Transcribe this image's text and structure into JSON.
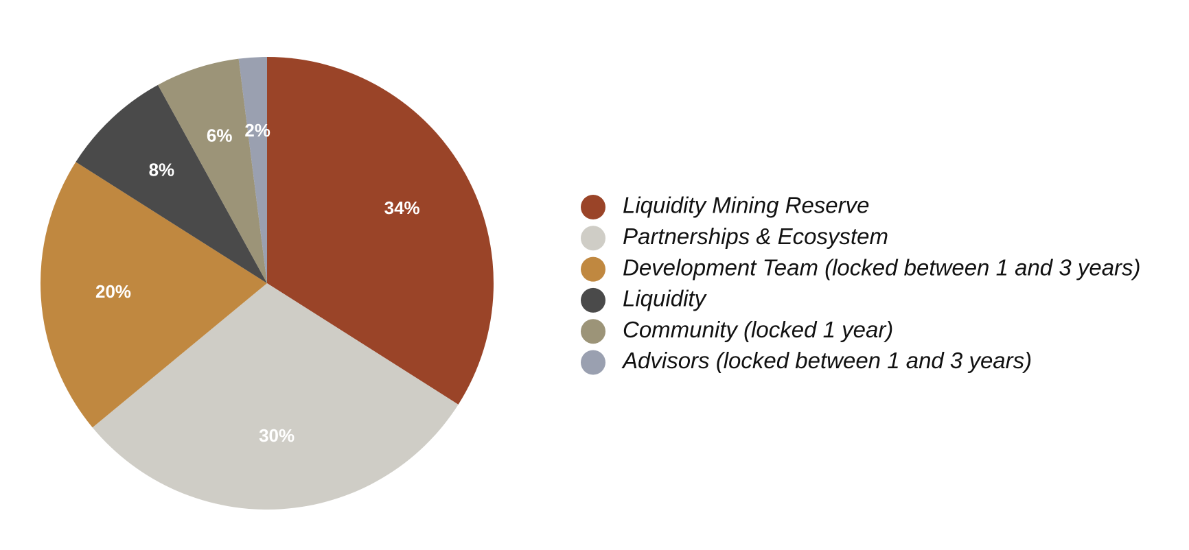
{
  "chart_data": {
    "type": "pie",
    "categories": [
      "Liquidity Mining Reserve",
      "Partnerships & Ecosystem",
      "Development Team (locked between 1 and 3 years)",
      "Liquidity",
      "Community (locked 1 year)",
      "Advisors (locked between 1 and 3 years)"
    ],
    "values": [
      34,
      30,
      20,
      8,
      6,
      2
    ],
    "value_labels": [
      "34%",
      "30%",
      "20%",
      "8%",
      "6%",
      "2%"
    ],
    "colors": [
      "#9a4428",
      "#cfcdc6",
      "#c08840",
      "#4a4a4a",
      "#9c9478",
      "#9aa0b0"
    ]
  }
}
